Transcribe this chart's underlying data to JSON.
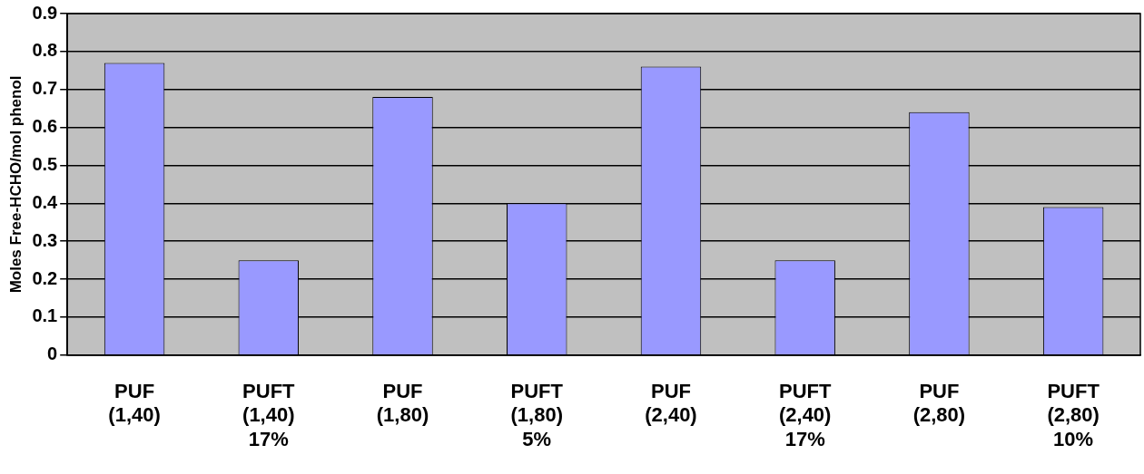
{
  "chart_data": {
    "type": "bar",
    "ylabel": "Moles Free-HCHO/mol phenol",
    "categories": [
      "PUF\n(1,40)",
      "PUFT\n(1,40)\n17%",
      "PUF\n(1,80)",
      "PUFT\n(1,80)\n5%",
      "PUF\n(2,40)",
      "PUFT\n(2,40)\n17%",
      "PUF\n(2,80)",
      "PUFT\n(2,80)\n10%"
    ],
    "values": [
      0.77,
      0.25,
      0.68,
      0.4,
      0.76,
      0.25,
      0.64,
      0.39
    ],
    "color": "#9999ff",
    "ylim": [
      0,
      0.9
    ],
    "yticks": [
      0,
      0.1,
      0.2,
      0.3,
      0.4,
      0.5,
      0.6,
      0.7,
      0.8,
      0.9
    ],
    "grid": "y",
    "legend": false
  }
}
